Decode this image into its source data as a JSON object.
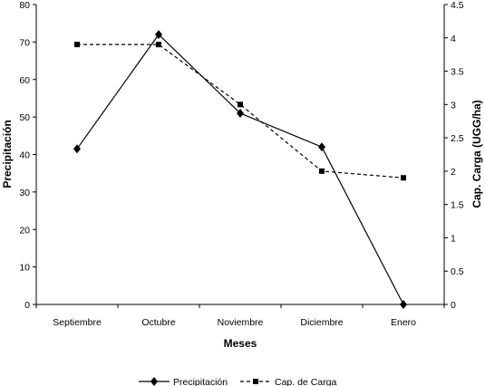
{
  "chart_data": {
    "type": "line",
    "title": "",
    "categories": [
      "Septiembre",
      "Octubre",
      "Noviembre",
      "Diciembre",
      "Enero"
    ],
    "xlabel": "Meses",
    "ylabel": "Precipitación",
    "y2label": "Cap. Carga (UGG/ha)",
    "ylim": [
      0,
      80
    ],
    "yticks": [
      "0",
      "10",
      "20",
      "30",
      "40",
      "50",
      "60",
      "70",
      "80"
    ],
    "y2lim": [
      0,
      4.5
    ],
    "y2ticks": [
      "0",
      "0.5",
      "1",
      "1.5",
      "2",
      "2.5",
      "3",
      "3.5",
      "4",
      "4.5"
    ],
    "grid": false,
    "legend_position": "bottom",
    "series": [
      {
        "name": "Precipitación",
        "axis": "left",
        "values": [
          41.5,
          72,
          51,
          42,
          0
        ],
        "line_style": "solid",
        "marker": "diamond",
        "color": "#000000"
      },
      {
        "name": "Cap. de Carga",
        "axis": "right",
        "values": [
          3.9,
          3.9,
          3.0,
          2.0,
          1.9
        ],
        "line_style": "dashed",
        "marker": "square",
        "color": "#000000"
      }
    ]
  }
}
